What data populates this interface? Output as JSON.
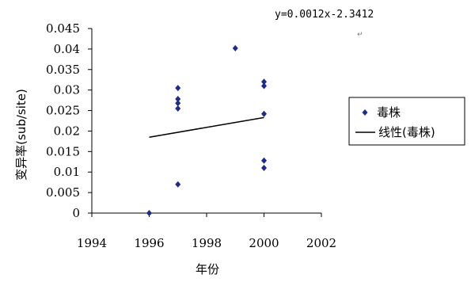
{
  "chart_data": {
    "type": "scatter",
    "title": "",
    "xlabel": "年份",
    "ylabel": "变异率(sub/site)",
    "xlim": [
      1994,
      2002
    ],
    "ylim": [
      0,
      0.045
    ],
    "x_ticks": [
      "1994",
      "1996",
      "1998",
      "2000",
      "2002"
    ],
    "y_ticks": [
      "0",
      "0.005",
      "0.01",
      "0.015",
      "0.02",
      "0.025",
      "0.03",
      "0.035",
      "0.04",
      "0.045"
    ],
    "grid": false,
    "legend_position": "right",
    "series": [
      {
        "name": "毒株",
        "type": "scatter",
        "marker": "diamond",
        "color": "#1f2a8c",
        "points": [
          {
            "x": 1996,
            "y": 0
          },
          {
            "x": 1997,
            "y": 0.0305
          },
          {
            "x": 1997,
            "y": 0.0278
          },
          {
            "x": 1997,
            "y": 0.0268
          },
          {
            "x": 1997,
            "y": 0.0255
          },
          {
            "x": 1997,
            "y": 0.007
          },
          {
            "x": 1999,
            "y": 0.0402
          },
          {
            "x": 2000,
            "y": 0.032
          },
          {
            "x": 2000,
            "y": 0.031
          },
          {
            "x": 2000,
            "y": 0.0242
          },
          {
            "x": 2000,
            "y": 0.0128
          },
          {
            "x": 2000,
            "y": 0.011
          }
        ]
      },
      {
        "name": "线性(毒株)",
        "type": "line",
        "color": "#000000",
        "points": [
          {
            "x": 1996,
            "y": 0.0185
          },
          {
            "x": 2000,
            "y": 0.0233
          }
        ]
      }
    ],
    "annotations": [
      {
        "text": "y=0.0012x-2.3412"
      },
      {
        "text": "↵"
      }
    ]
  }
}
